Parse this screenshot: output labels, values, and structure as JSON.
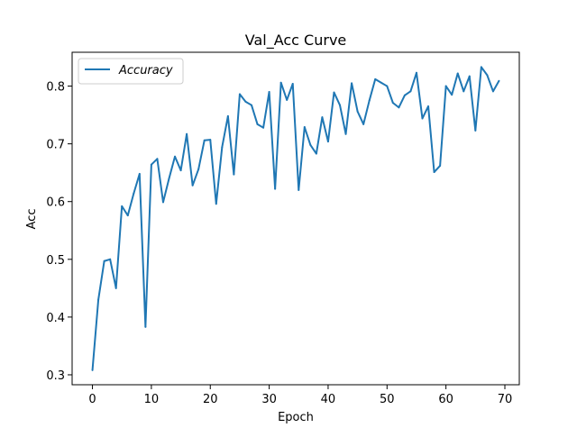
{
  "chart_data": {
    "type": "line",
    "title": "Val_Acc Curve",
    "xlabel": "Epoch",
    "ylabel": "Acc",
    "xlim": [
      -3.45,
      72.45
    ],
    "ylim": [
      0.2828,
      0.8586
    ],
    "xticks": [
      0,
      10,
      20,
      30,
      40,
      50,
      60,
      70
    ],
    "yticks": [
      0.3,
      0.4,
      0.5,
      0.6,
      0.7,
      0.8
    ],
    "grid": false,
    "legend_position": "upper left",
    "series": [
      {
        "name": "Accuracy",
        "color": "#1f77b4",
        "x": [
          0,
          1,
          2,
          3,
          4,
          5,
          6,
          7,
          8,
          9,
          10,
          11,
          12,
          13,
          14,
          15,
          16,
          17,
          18,
          19,
          20,
          21,
          22,
          23,
          24,
          25,
          26,
          27,
          28,
          29,
          30,
          31,
          32,
          33,
          34,
          35,
          36,
          37,
          38,
          39,
          40,
          41,
          42,
          43,
          44,
          45,
          46,
          47,
          48,
          49,
          50,
          51,
          52,
          53,
          54,
          55,
          56,
          57,
          58,
          59,
          60,
          61,
          62,
          63,
          64,
          65,
          66,
          67,
          68,
          69
        ],
        "values": [
          0.308,
          0.43,
          0.497,
          0.5,
          0.45,
          0.592,
          0.576,
          0.614,
          0.648,
          0.383,
          0.664,
          0.674,
          0.599,
          0.64,
          0.678,
          0.654,
          0.717,
          0.628,
          0.656,
          0.706,
          0.707,
          0.596,
          0.694,
          0.748,
          0.647,
          0.786,
          0.773,
          0.767,
          0.734,
          0.728,
          0.79,
          0.622,
          0.806,
          0.776,
          0.804,
          0.62,
          0.729,
          0.698,
          0.683,
          0.746,
          0.704,
          0.789,
          0.767,
          0.717,
          0.805,
          0.756,
          0.734,
          0.775,
          0.812,
          0.806,
          0.8,
          0.771,
          0.763,
          0.784,
          0.791,
          0.823,
          0.744,
          0.765,
          0.651,
          0.662,
          0.8,
          0.785,
          0.822,
          0.791,
          0.817,
          0.723,
          0.833,
          0.819,
          0.791,
          0.809
        ]
      }
    ]
  }
}
